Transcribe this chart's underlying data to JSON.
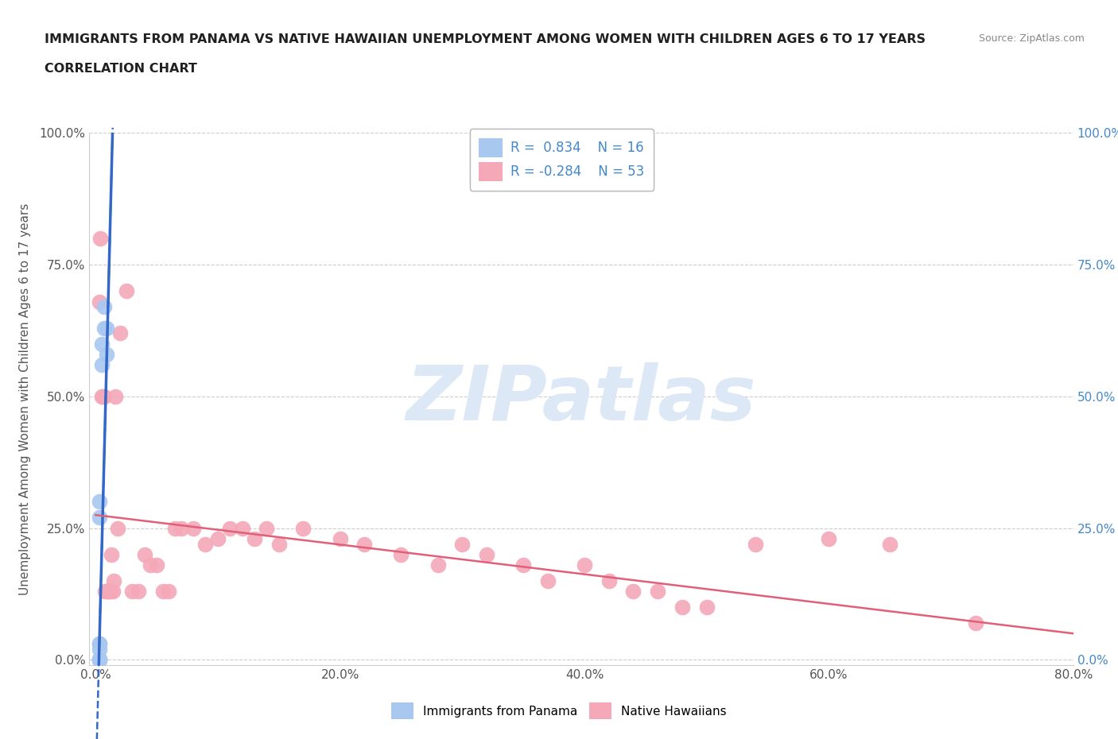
{
  "title_line1": "IMMIGRANTS FROM PANAMA VS NATIVE HAWAIIAN UNEMPLOYMENT AMONG WOMEN WITH CHILDREN AGES 6 TO 17 YEARS",
  "title_line2": "CORRELATION CHART",
  "source_text": "Source: ZipAtlas.com",
  "ylabel": "Unemployment Among Women with Children Ages 6 to 17 years",
  "xlim": [
    -0.005,
    0.8
  ],
  "ylim": [
    -0.01,
    1.0
  ],
  "xticks": [
    0.0,
    0.2,
    0.4,
    0.6,
    0.8
  ],
  "yticks": [
    0.0,
    0.25,
    0.5,
    0.75,
    1.0
  ],
  "xticklabels": [
    "0.0%",
    "20.0%",
    "40.0%",
    "60.0%",
    "80.0%"
  ],
  "yticklabels": [
    "0.0%",
    "25.0%",
    "50.0%",
    "75.0%",
    "100.0%"
  ],
  "blue_R": 0.834,
  "blue_N": 16,
  "pink_R": -0.284,
  "pink_N": 53,
  "blue_color": "#a8c8f0",
  "pink_color": "#f4a8b8",
  "blue_line_color": "#3368c8",
  "pink_line_color": "#e0607a",
  "legend_label_blue": "Immigrants from Panama",
  "legend_label_pink": "Native Hawaiians",
  "blue_scatter_x": [
    0.003,
    0.003,
    0.003,
    0.003,
    0.003,
    0.003,
    0.003,
    0.003,
    0.003,
    0.003,
    0.005,
    0.005,
    0.007,
    0.007,
    0.009,
    0.009
  ],
  "blue_scatter_y": [
    0.0,
    0.0,
    0.0,
    0.0,
    0.0,
    0.02,
    0.03,
    0.03,
    0.27,
    0.3,
    0.56,
    0.6,
    0.63,
    0.67,
    0.63,
    0.58
  ],
  "pink_scatter_x": [
    0.003,
    0.004,
    0.005,
    0.006,
    0.007,
    0.008,
    0.009,
    0.01,
    0.011,
    0.012,
    0.013,
    0.014,
    0.015,
    0.016,
    0.018,
    0.02,
    0.025,
    0.03,
    0.035,
    0.04,
    0.045,
    0.05,
    0.055,
    0.06,
    0.065,
    0.07,
    0.08,
    0.09,
    0.1,
    0.11,
    0.12,
    0.13,
    0.14,
    0.15,
    0.17,
    0.2,
    0.22,
    0.25,
    0.28,
    0.3,
    0.32,
    0.35,
    0.37,
    0.4,
    0.42,
    0.44,
    0.46,
    0.48,
    0.5,
    0.54,
    0.6,
    0.65,
    0.72
  ],
  "pink_scatter_y": [
    0.68,
    0.8,
    0.5,
    0.5,
    0.5,
    0.13,
    0.13,
    0.13,
    0.13,
    0.13,
    0.2,
    0.13,
    0.15,
    0.5,
    0.25,
    0.62,
    0.7,
    0.13,
    0.13,
    0.2,
    0.18,
    0.18,
    0.13,
    0.13,
    0.25,
    0.25,
    0.25,
    0.22,
    0.23,
    0.25,
    0.25,
    0.23,
    0.25,
    0.22,
    0.25,
    0.23,
    0.22,
    0.2,
    0.18,
    0.22,
    0.2,
    0.18,
    0.15,
    0.18,
    0.15,
    0.13,
    0.13,
    0.1,
    0.1,
    0.22,
    0.23,
    0.22,
    0.07
  ],
  "grid_color": "#cccccc",
  "background_color": "#ffffff",
  "title_color": "#202020",
  "axis_color": "#555555",
  "tick_color_right": "#4488cc",
  "tick_color_left": "#555555",
  "watermark_color": "#dce8f5",
  "watermark_fontsize": 70
}
